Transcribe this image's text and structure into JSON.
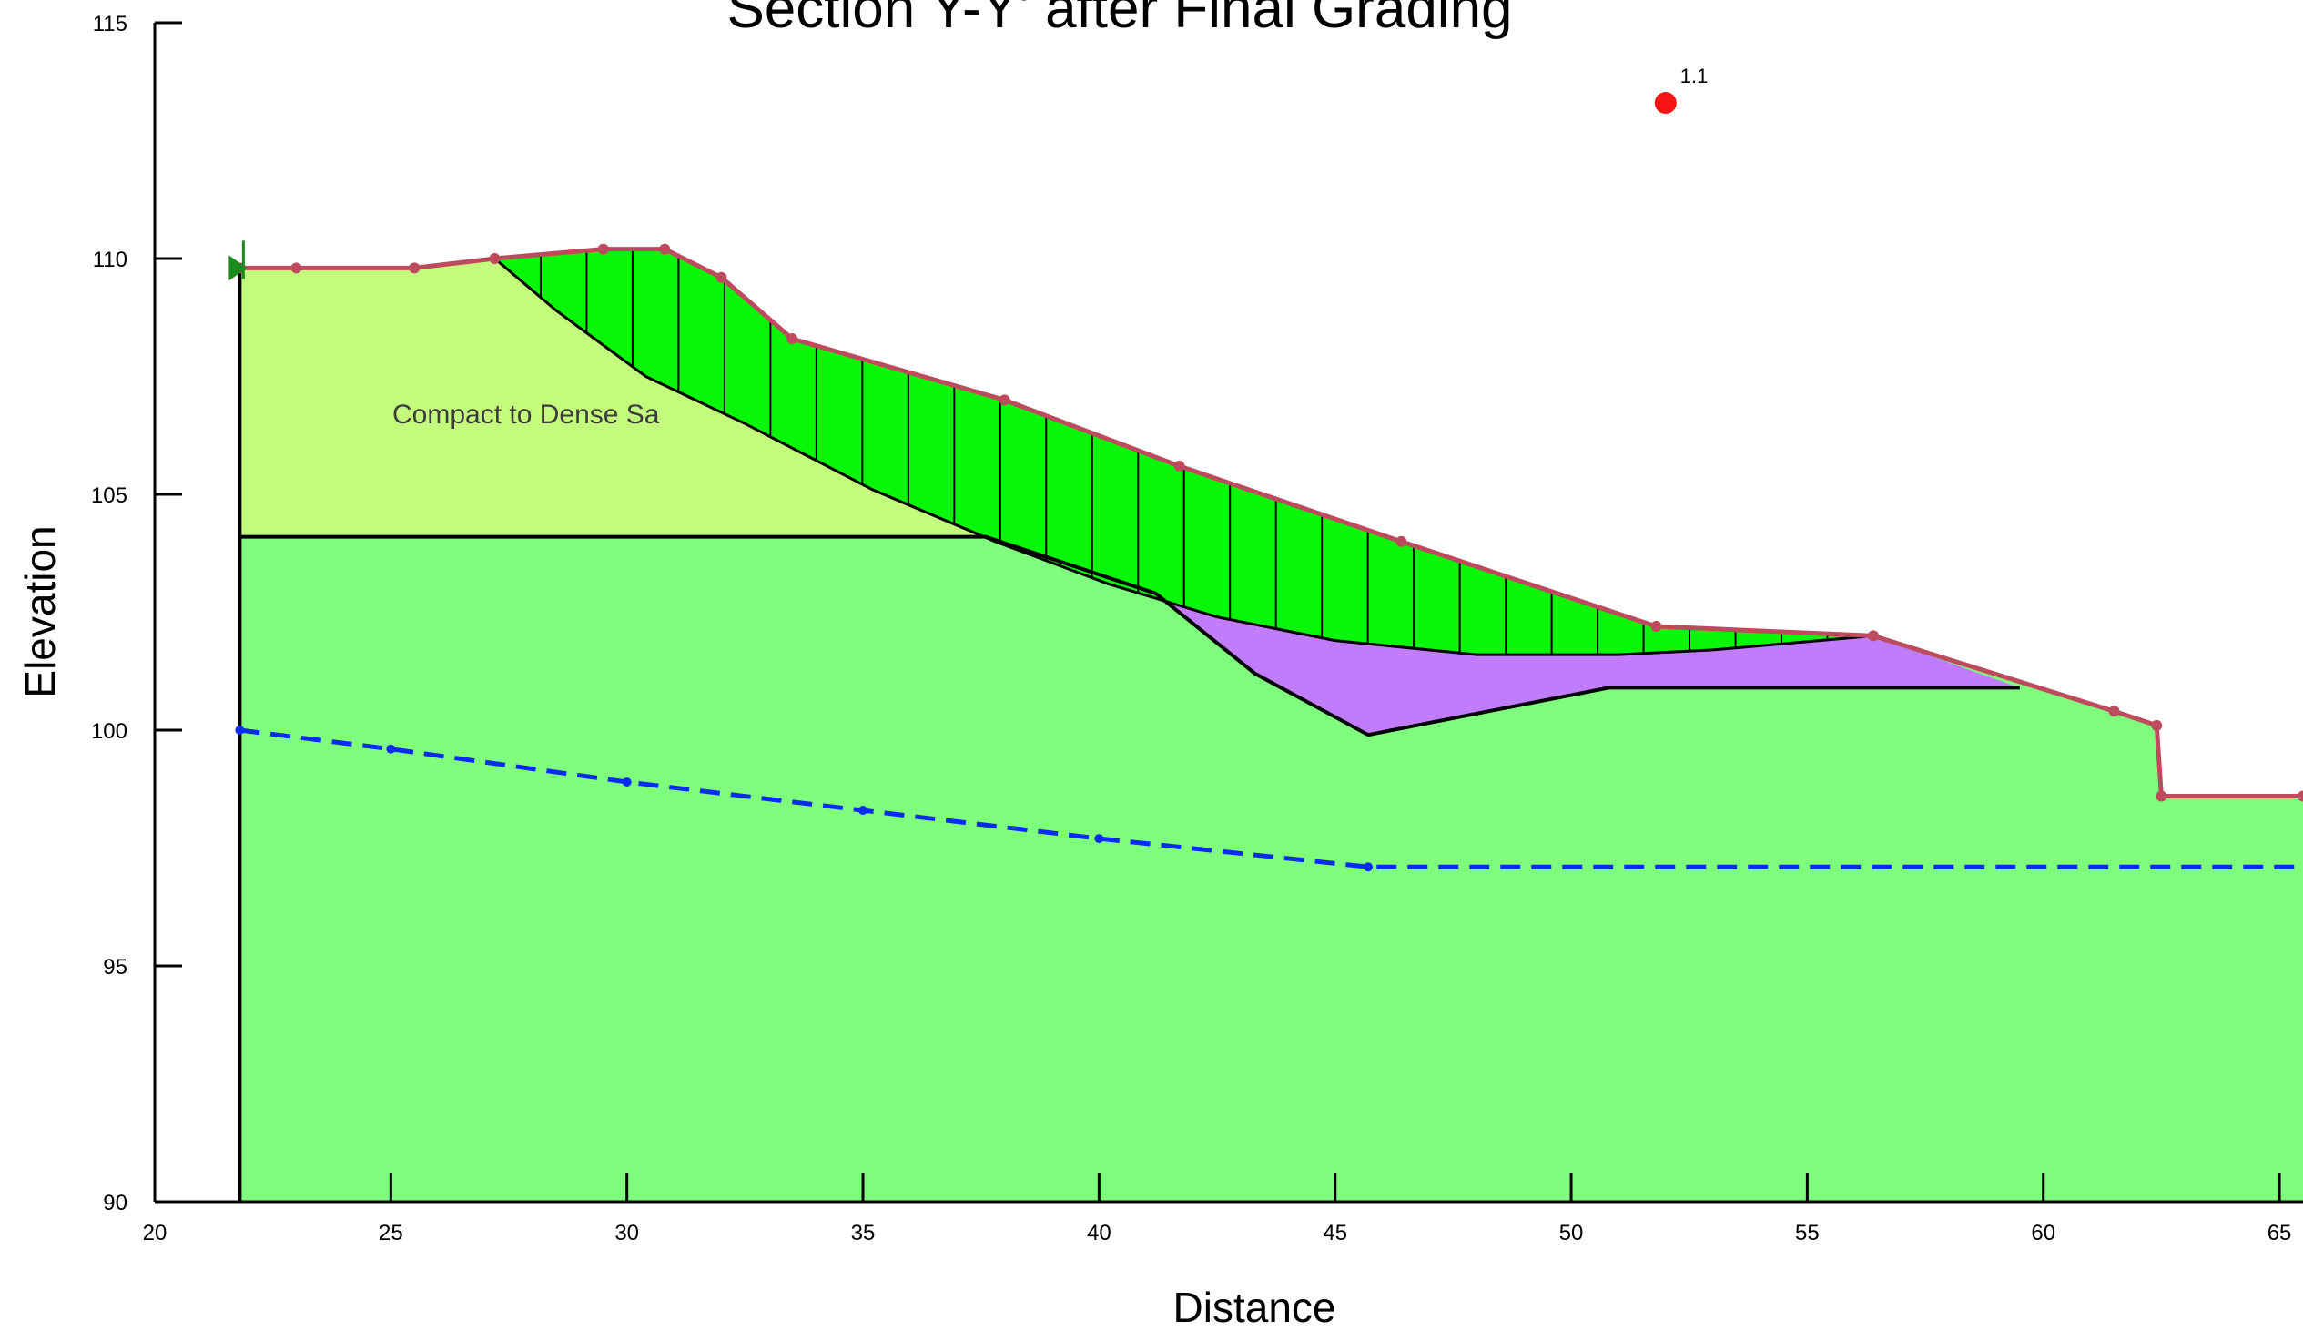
{
  "chart_data": {
    "type": "area",
    "title": "Section Y-Y' after Final Grading",
    "xlabel": "Distance",
    "ylabel": "Elevation",
    "xlim": [
      20,
      65.5
    ],
    "ylim": [
      90,
      115
    ],
    "x_ticks": [
      20,
      25,
      30,
      35,
      40,
      45,
      50,
      55,
      60,
      65
    ],
    "y_ticks": [
      90,
      95,
      100,
      105,
      110,
      115
    ],
    "grid": false,
    "material_label": "Compact to Dense Sa",
    "colors": {
      "upper_layer": "#c3fb7c",
      "lower_layer": "#7ffd7c",
      "sliding_mass": "#08f708",
      "fill_lens": "#c07cfb",
      "ground_surface": "#be4a5e",
      "water_table": "#0a2cf1",
      "slip_center": "#f51414",
      "outline": "#000000",
      "left_marker": "#1c8a1c"
    },
    "ground_surface": [
      [
        21.8,
        109.8
      ],
      [
        23.0,
        109.8
      ],
      [
        25.5,
        109.8
      ],
      [
        27.2,
        110.0
      ],
      [
        29.5,
        110.2
      ],
      [
        30.8,
        110.2
      ],
      [
        32.0,
        109.6
      ],
      [
        33.5,
        108.3
      ],
      [
        38.0,
        107.0
      ],
      [
        41.7,
        105.6
      ],
      [
        46.4,
        104.0
      ],
      [
        51.8,
        102.2
      ],
      [
        56.4,
        102.0
      ],
      [
        61.5,
        100.4
      ],
      [
        62.4,
        100.1
      ],
      [
        62.5,
        98.6
      ],
      [
        65.5,
        98.6
      ]
    ],
    "layer_boundary": [
      [
        21.8,
        104.1
      ],
      [
        37.6,
        104.1
      ],
      [
        41.2,
        102.9
      ]
    ],
    "fill_lens_outline": [
      [
        41.2,
        102.9
      ],
      [
        43.3,
        101.2
      ],
      [
        45.7,
        99.9
      ],
      [
        50.8,
        100.9
      ],
      [
        59.5,
        100.9
      ],
      [
        56.4,
        102.0
      ],
      [
        51.8,
        102.2
      ],
      [
        46.4,
        104.0
      ],
      [
        41.7,
        105.6
      ]
    ],
    "slip_surface": [
      [
        27.2,
        110.0
      ],
      [
        28.5,
        108.9
      ],
      [
        30.4,
        107.5
      ],
      [
        32.5,
        106.5
      ],
      [
        35.2,
        105.1
      ],
      [
        37.8,
        104.0
      ],
      [
        40.2,
        103.1
      ],
      [
        42.5,
        102.4
      ],
      [
        45.0,
        101.9
      ],
      [
        48.0,
        101.6
      ],
      [
        51.0,
        101.6
      ],
      [
        53.0,
        101.7
      ],
      [
        56.4,
        102.0
      ]
    ],
    "water_table": [
      [
        21.8,
        100.0
      ],
      [
        25.0,
        99.6
      ],
      [
        30.0,
        98.9
      ],
      [
        35.0,
        98.3
      ],
      [
        40.0,
        97.7
      ],
      [
        45.7,
        97.1
      ],
      [
        50.0,
        97.1
      ],
      [
        55.0,
        97.1
      ],
      [
        60.0,
        97.1
      ],
      [
        65.5,
        97.1
      ]
    ],
    "slip_center": {
      "x": 52.0,
      "y": 113.3,
      "label": "1.1"
    }
  }
}
